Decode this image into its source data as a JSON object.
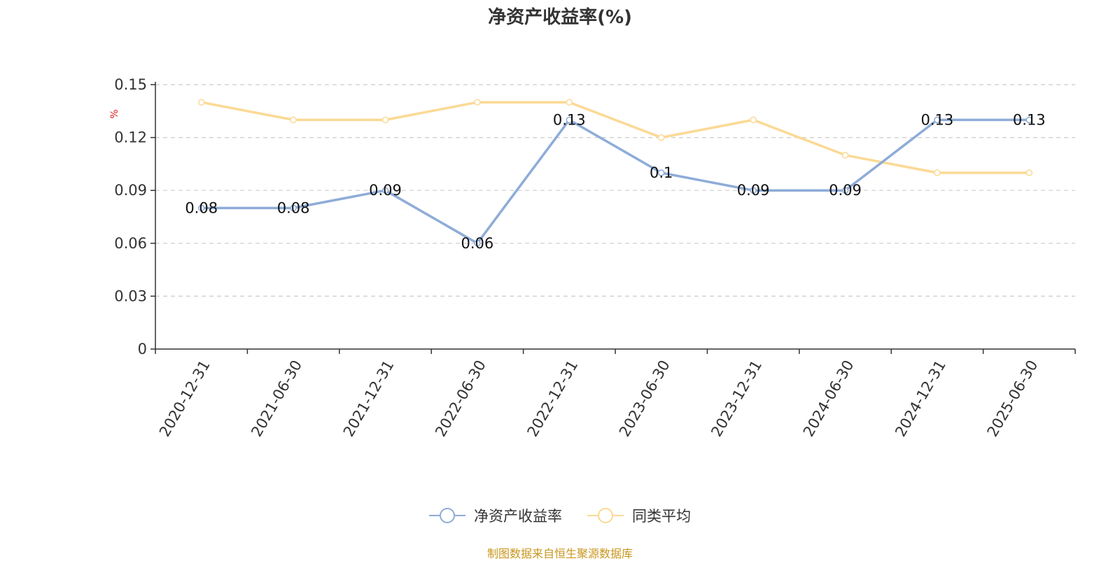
{
  "title": "净资产收益率(%)",
  "source": "制图数据来自恒生聚源数据库",
  "colors": {
    "series1": "#8eacd8",
    "series2": "#fbd995",
    "unit": "#e02020",
    "source": "#c8961e",
    "axis": "#333333",
    "grid": "#cccccc"
  },
  "chart_data": {
    "type": "line",
    "title": "净资产收益率(%)",
    "ylabel": "%",
    "ylim": [
      0,
      0.15
    ],
    "yticks": [
      "0",
      "0.03",
      "0.06",
      "0.09",
      "0.12",
      "0.15"
    ],
    "grid": true,
    "legend_position": "bottom",
    "categories": [
      "2020-12-31",
      "2021-06-30",
      "2021-12-31",
      "2022-06-30",
      "2022-12-31",
      "2023-06-30",
      "2023-12-31",
      "2024-06-30",
      "2024-12-31",
      "2025-06-30"
    ],
    "series": [
      {
        "name": "净资产收益率",
        "values": [
          0.08,
          0.08,
          0.09,
          0.06,
          0.13,
          0.1,
          0.09,
          0.09,
          0.13,
          0.13
        ],
        "labels": [
          "0.08",
          "0.08",
          "0.09",
          "0.06",
          "0.13",
          "0.1",
          "0.09",
          "0.09",
          "0.13",
          "0.13"
        ]
      },
      {
        "name": "同类平均",
        "values": [
          0.14,
          0.13,
          0.13,
          0.14,
          0.14,
          0.12,
          0.13,
          0.11,
          0.1,
          0.1
        ]
      }
    ]
  }
}
